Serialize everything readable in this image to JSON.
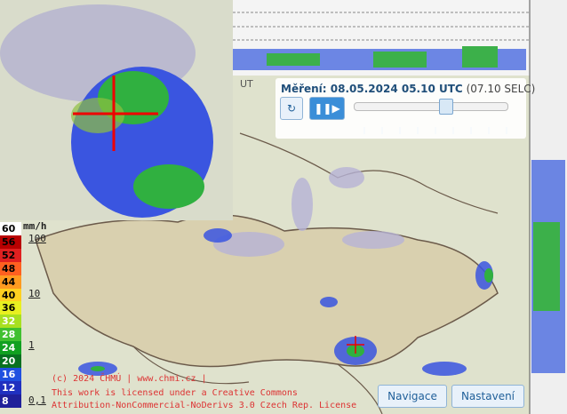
{
  "header": {
    "measurement_label": "Měření: 08.05.2024 05.10 UTC",
    "local_time": "(07.10 SELC)",
    "utc_fragment": "UT"
  },
  "legend": {
    "unit": "mm/h",
    "entries": [
      {
        "label": "60",
        "color": "#ffffff"
      },
      {
        "label": "56",
        "color": "#b80000"
      },
      {
        "label": "52",
        "color": "#e02020"
      },
      {
        "label": "48",
        "color": "#ff6020"
      },
      {
        "label": "44",
        "color": "#ff9a20"
      },
      {
        "label": "40",
        "color": "#ffd020"
      },
      {
        "label": "36",
        "color": "#e8f020"
      },
      {
        "label": "32",
        "color": "#a8e020"
      },
      {
        "label": "28",
        "color": "#40c030"
      },
      {
        "label": "24",
        "color": "#10a020"
      },
      {
        "label": "20",
        "color": "#087020"
      },
      {
        "label": "16",
        "color": "#2050e0"
      },
      {
        "label": "12",
        "color": "#2030c0"
      },
      {
        "label": "8",
        "color": "#20209a"
      }
    ],
    "rates": [
      "100",
      "10",
      "1",
      "0,1"
    ]
  },
  "copyright": [
    "(c) 2024 ČHMÚ | www.chmi.cz |",
    "This work is licensed under a Creative Commons",
    "Attribution-NonCommercial-NoDerivs 3.0 Czech Rep. License"
  ],
  "buttons": [
    "Navigace",
    "Nastavení"
  ]
}
